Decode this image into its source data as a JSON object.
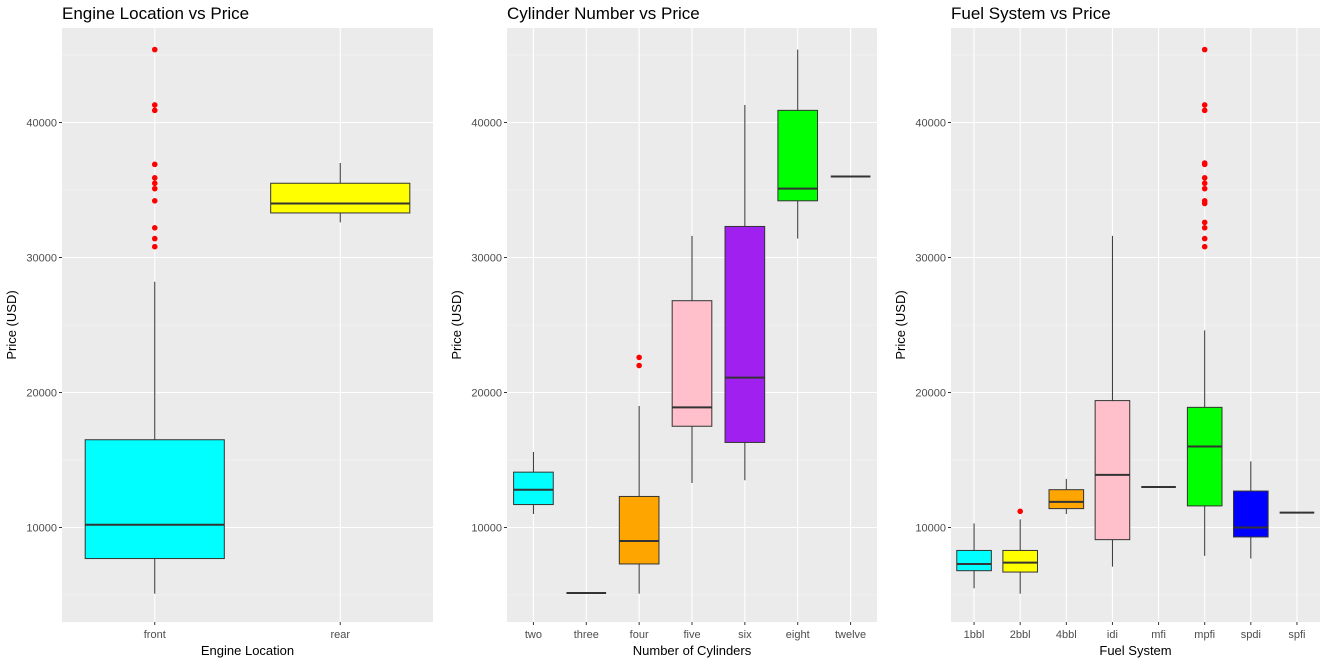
{
  "chart_data": [
    {
      "type": "boxplot",
      "title": "Engine Location vs Price",
      "xlabel": "Engine Location",
      "ylabel": "Price (USD)",
      "ylim": [
        3000,
        47000
      ],
      "yticks": [
        10000,
        20000,
        30000,
        40000
      ],
      "categories": [
        {
          "label": "front",
          "color": "#00FFFF",
          "q1": 7700,
          "median": 10200,
          "q3": 16500,
          "lower": 5100,
          "upper": 28200,
          "outliers": [
            30800,
            31400,
            32200,
            34200,
            35100,
            35500,
            35900,
            36900,
            40900,
            41300,
            45400
          ]
        },
        {
          "label": "rear",
          "color": "#FFFF00",
          "q1": 33300,
          "median": 34000,
          "q3": 35500,
          "lower": 32600,
          "upper": 37000,
          "outliers": []
        }
      ]
    },
    {
      "type": "boxplot",
      "title": "Cylinder Number vs Price",
      "xlabel": "Number of Cylinders",
      "ylabel": "Price (USD)",
      "ylim": [
        3000,
        47000
      ],
      "yticks": [
        10000,
        20000,
        30000,
        40000
      ],
      "categories": [
        {
          "label": "two",
          "color": "#00FFFF",
          "q1": 11700,
          "median": 12800,
          "q3": 14100,
          "lower": 11000,
          "upper": 15600,
          "outliers": []
        },
        {
          "label": "three",
          "color": "#FF0000",
          "q1": 5150,
          "median": 5150,
          "q3": 5150,
          "lower": 5150,
          "upper": 5150,
          "outliers": []
        },
        {
          "label": "four",
          "color": "#FFA500",
          "q1": 7300,
          "median": 9000,
          "q3": 12300,
          "lower": 5100,
          "upper": 19000,
          "outliers": [
            22000,
            22600
          ]
        },
        {
          "label": "five",
          "color": "#FFC0CB",
          "q1": 17500,
          "median": 18900,
          "q3": 26800,
          "lower": 13300,
          "upper": 31600,
          "outliers": []
        },
        {
          "label": "six",
          "color": "#A020F0",
          "q1": 16300,
          "median": 21100,
          "q3": 32300,
          "lower": 13500,
          "upper": 41300,
          "outliers": []
        },
        {
          "label": "eight",
          "color": "#00FF00",
          "q1": 34200,
          "median": 35100,
          "q3": 40900,
          "lower": 31400,
          "upper": 45400,
          "outliers": []
        },
        {
          "label": "twelve",
          "color": "#0000FF",
          "q1": 36000,
          "median": 36000,
          "q3": 36000,
          "lower": 36000,
          "upper": 36000,
          "outliers": []
        }
      ]
    },
    {
      "type": "boxplot",
      "title": "Fuel System vs Price",
      "xlabel": "Fuel System",
      "ylabel": "Price (USD)",
      "ylim": [
        3000,
        47000
      ],
      "yticks": [
        10000,
        20000,
        30000,
        40000
      ],
      "categories": [
        {
          "label": "1bbl",
          "color": "#00FFFF",
          "q1": 6800,
          "median": 7300,
          "q3": 8300,
          "lower": 5500,
          "upper": 10300,
          "outliers": []
        },
        {
          "label": "2bbl",
          "color": "#FFFF00",
          "q1": 6700,
          "median": 7400,
          "q3": 8300,
          "lower": 5100,
          "upper": 10600,
          "outliers": [
            11200
          ]
        },
        {
          "label": "4bbl",
          "color": "#FFA500",
          "q1": 11400,
          "median": 11900,
          "q3": 12800,
          "lower": 11000,
          "upper": 13600,
          "outliers": []
        },
        {
          "label": "idi",
          "color": "#FFC0CB",
          "q1": 9100,
          "median": 13900,
          "q3": 19400,
          "lower": 7100,
          "upper": 31600,
          "outliers": []
        },
        {
          "label": "mfi",
          "color": "#FF0000",
          "q1": 13000,
          "median": 13000,
          "q3": 13000,
          "lower": 13000,
          "upper": 13000,
          "outliers": []
        },
        {
          "label": "mpfi",
          "color": "#00FF00",
          "q1": 11600,
          "median": 16000,
          "q3": 18900,
          "lower": 7900,
          "upper": 24600,
          "outliers": [
            30800,
            31400,
            32200,
            32600,
            34000,
            34200,
            35100,
            35500,
            35900,
            36900,
            37000,
            40900,
            41300,
            45400
          ]
        },
        {
          "label": "spdi",
          "color": "#0000FF",
          "q1": 9300,
          "median": 10000,
          "q3": 12700,
          "lower": 7700,
          "upper": 14900,
          "outliers": []
        },
        {
          "label": "spfi",
          "color": "#A020F0",
          "q1": 11100,
          "median": 11100,
          "q3": 11100,
          "lower": 11100,
          "upper": 11100,
          "outliers": []
        }
      ]
    }
  ]
}
